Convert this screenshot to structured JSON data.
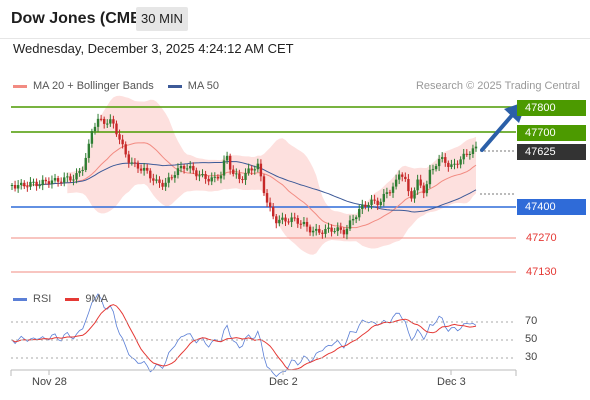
{
  "header": {
    "title": "Dow Jones (CME)",
    "timeframe": "30 MIN"
  },
  "datetime": "Wednesday, December 3, 2025 4:24:12 AM CET",
  "legend": {
    "ma20": "MA 20 + Bollinger Bands",
    "ma50": "MA 50",
    "ma20_color": "#f28b82",
    "ma50_color": "#3d5a98"
  },
  "research": "Research © 2025 Trading Central",
  "levels": {
    "r2": {
      "value": "47800",
      "color": "#4c9a00"
    },
    "r1": {
      "value": "47700",
      "color": "#4c9a00"
    },
    "last": {
      "value": "47625",
      "color": "#333333"
    },
    "s1": {
      "value": "47400",
      "color": "#2f6bd8"
    },
    "s2": {
      "value": "47270",
      "color": "#e53935"
    },
    "s3": {
      "value": "47130",
      "color": "#e53935"
    }
  },
  "rsi_panel": {
    "rsi_label": "RSI",
    "ma_label": "9MA",
    "rsi_color": "#5b7fd6",
    "ma_color": "#e53935",
    "ticks": [
      "70",
      "50",
      "30"
    ]
  },
  "x_axis": [
    "Nov 28",
    "Dec 2",
    "Dec 3"
  ]
}
